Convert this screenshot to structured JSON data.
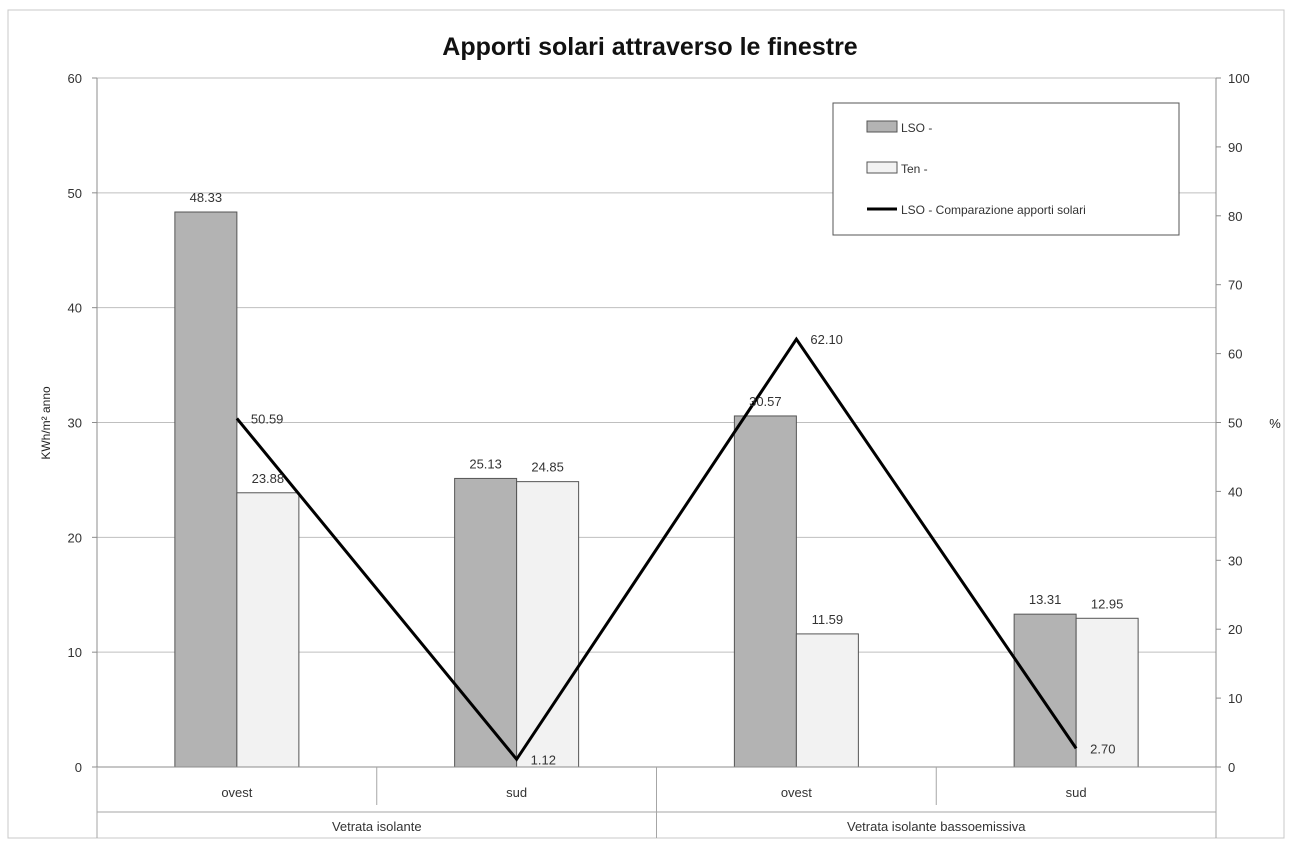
{
  "chart_data": {
    "type": "bar",
    "title": "Apporti solari attraverso le finestre",
    "ylabel": "KWh/m² anno",
    "y2label": "%",
    "ylim": [
      0,
      60
    ],
    "y2lim": [
      0,
      100
    ],
    "yticks": [
      "0",
      "10",
      "20",
      "30",
      "40",
      "50",
      "60"
    ],
    "y2ticks": [
      "0",
      "10",
      "20",
      "30",
      "40",
      "50",
      "60",
      "70",
      "80",
      "90",
      "100"
    ],
    "categories": [
      "ovest",
      "sud",
      "ovest",
      "sud"
    ],
    "groups": [
      {
        "label": "Vetrata isolante",
        "span": 2
      },
      {
        "label": "Vetrata isolante bassoemissiva",
        "span": 2
      }
    ],
    "series": [
      {
        "name": "LSO -",
        "type": "bar",
        "axis": "left",
        "color": "#b3b3b3",
        "values": [
          48.33,
          25.13,
          30.57,
          13.31
        ],
        "labels": [
          "48.33",
          "25.13",
          "30.57",
          "13.31"
        ]
      },
      {
        "name": "Ten -",
        "type": "bar",
        "axis": "left",
        "color": "#f2f2f2",
        "values": [
          23.88,
          24.85,
          11.59,
          12.95
        ],
        "labels": [
          "23.88",
          "24.85",
          "11.59",
          "12.95"
        ]
      },
      {
        "name": "LSO -  Comparazione apporti solari",
        "type": "line",
        "axis": "right",
        "color": "#000000",
        "values": [
          50.59,
          1.12,
          62.1,
          2.7
        ],
        "labels": [
          "50.59",
          "1.12",
          "62.10",
          "2.70"
        ]
      }
    ],
    "grid": true,
    "legend_position": "top-right"
  }
}
